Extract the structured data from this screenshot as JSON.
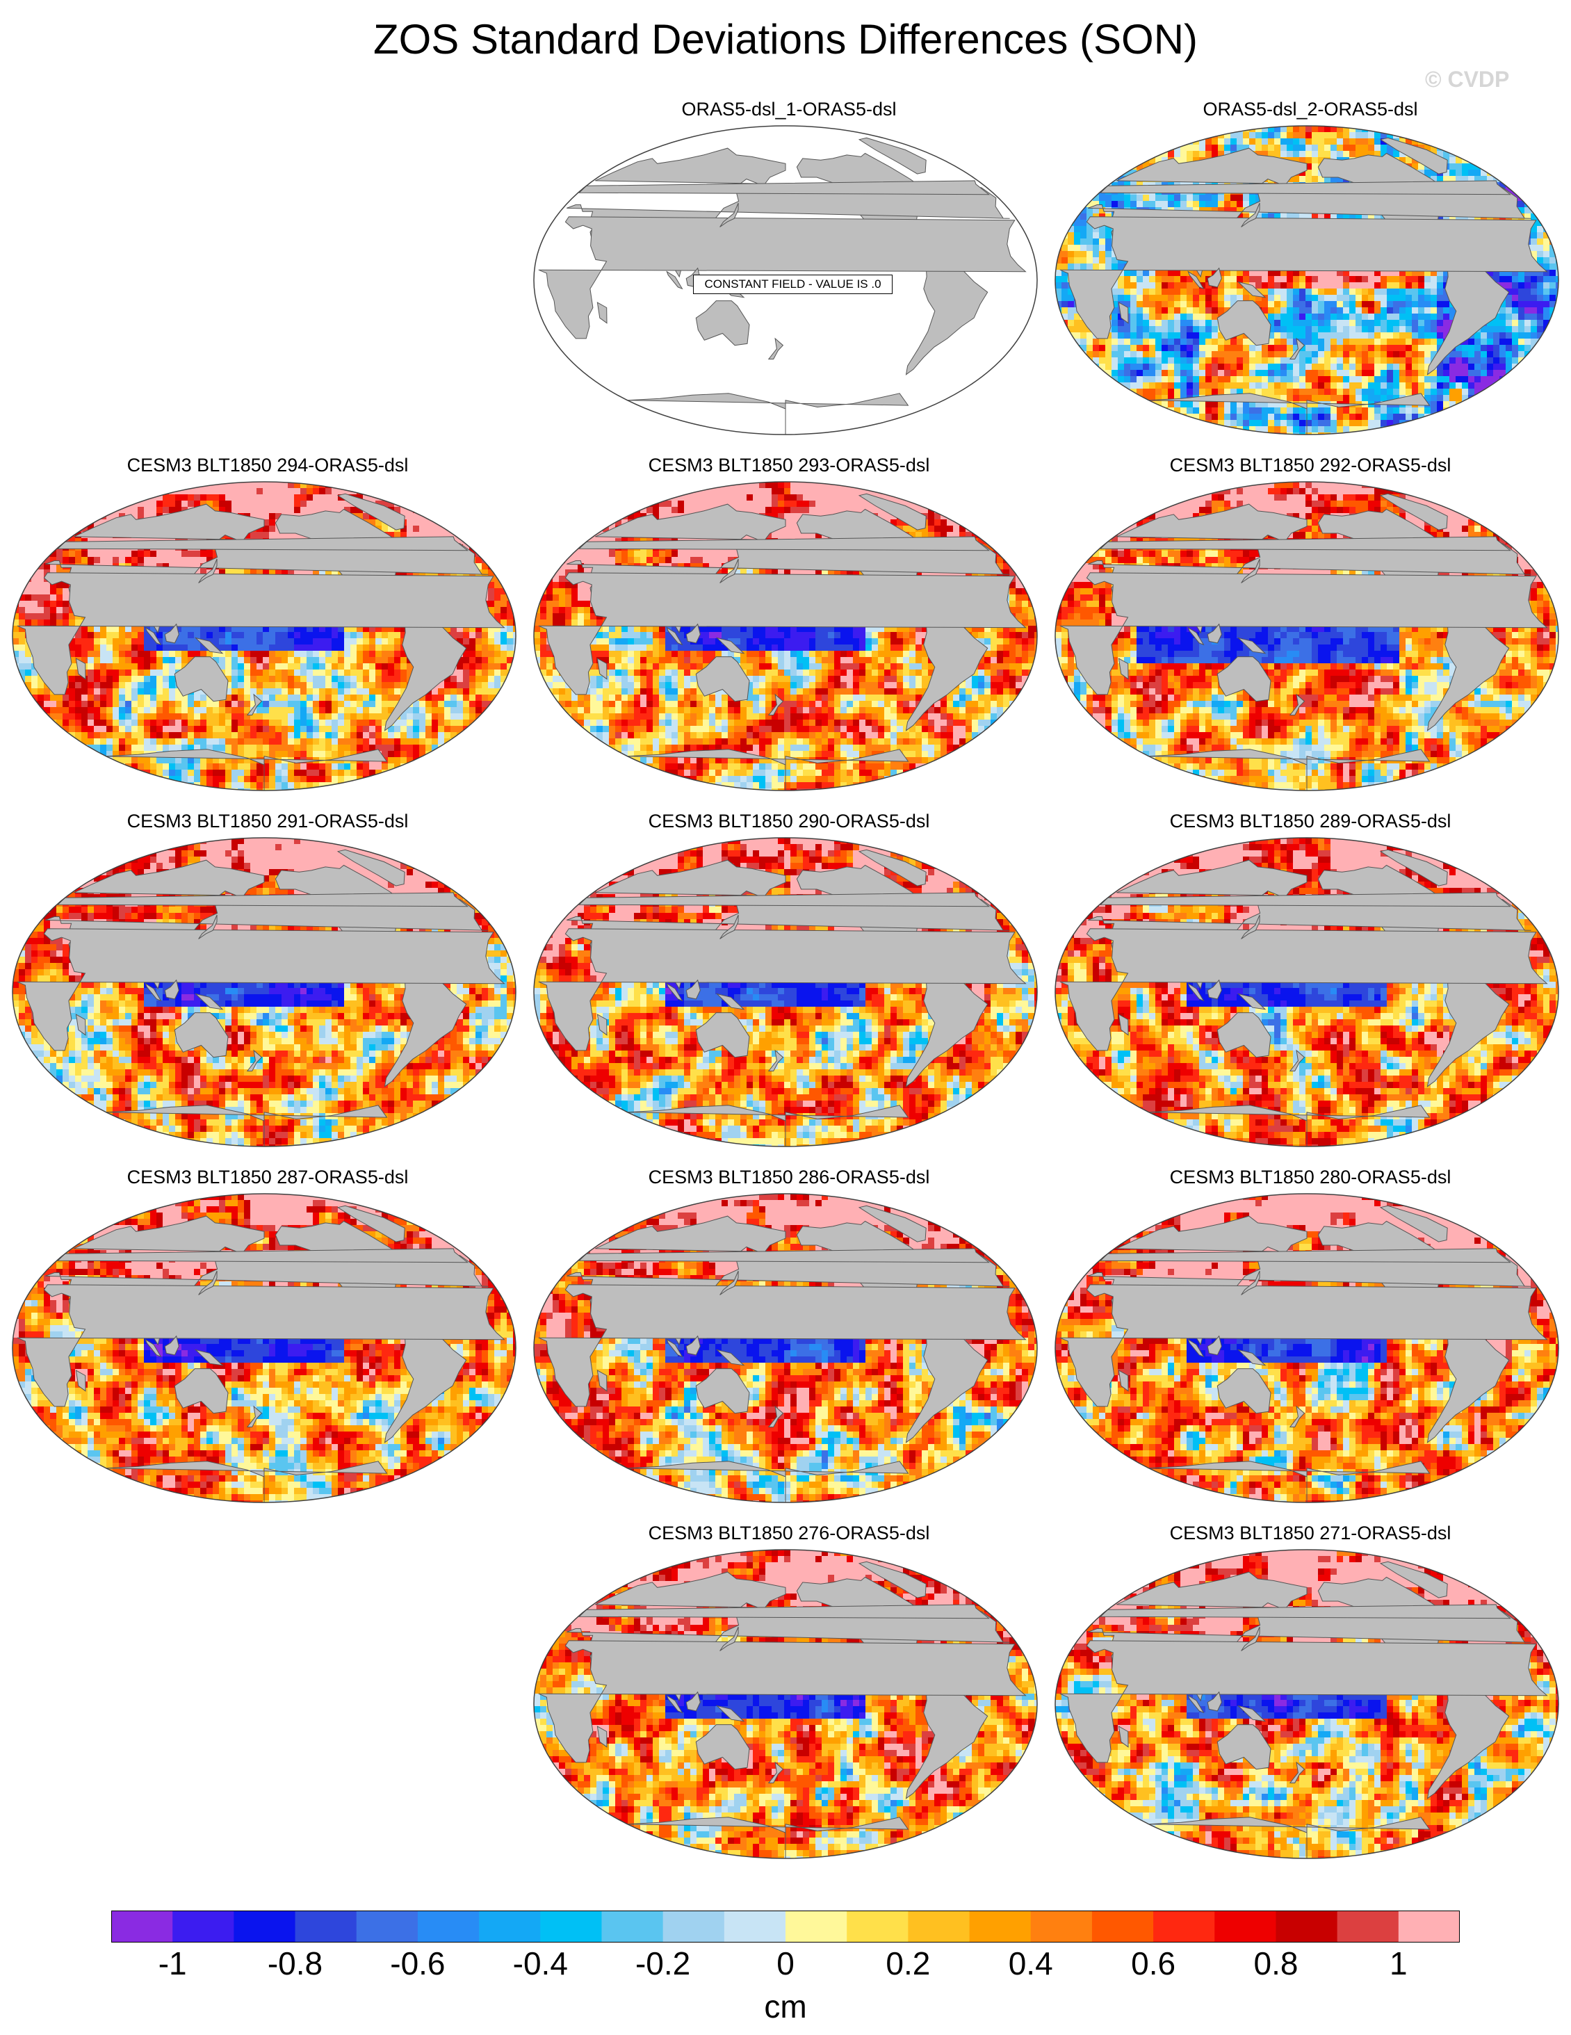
{
  "title": "ZOS Standard Deviations Differences (SON)",
  "watermark": "© CVDP",
  "colors": {
    "land": "#bebebe",
    "ocean_blank": "#ffffff",
    "outline": "#404040"
  },
  "chart_data": {
    "type": "heatmap",
    "projection": "Robinson, Pacific-centered global maps",
    "variable": "ZOS",
    "season": "SON",
    "units": "cm",
    "panels": [
      {
        "title": "ORAS5-dsl_1-ORAS5-dsl",
        "constant_field": true,
        "label": "CONSTANT FIELD - VALUE IS .0"
      },
      {
        "title": "ORAS5-dsl_2-ORAS5-dsl",
        "pattern": "mixed"
      },
      {
        "title": "CESM3 BLT1850 294-ORAS5-dsl",
        "pattern": "positive"
      },
      {
        "title": "CESM3 BLT1850 293-ORAS5-dsl",
        "pattern": "positive"
      },
      {
        "title": "CESM3 BLT1850 292-ORAS5-dsl",
        "pattern": "negative-pacific"
      },
      {
        "title": "CESM3 BLT1850 291-ORAS5-dsl",
        "pattern": "positive"
      },
      {
        "title": "CESM3 BLT1850 290-ORAS5-dsl",
        "pattern": "positive"
      },
      {
        "title": "CESM3 BLT1850 289-ORAS5-dsl",
        "pattern": "positive"
      },
      {
        "title": "CESM3 BLT1850 287-ORAS5-dsl",
        "pattern": "positive"
      },
      {
        "title": "CESM3 BLT1850 286-ORAS5-dsl",
        "pattern": "positive"
      },
      {
        "title": "CESM3 BLT1850 280-ORAS5-dsl",
        "pattern": "positive"
      },
      {
        "title": "CESM3 BLT1850 276-ORAS5-dsl",
        "pattern": "positive"
      },
      {
        "title": "CESM3 BLT1850 271-ORAS5-dsl",
        "pattern": "positive"
      }
    ],
    "colorbar": {
      "unit_label": "cm",
      "tick_labels": [
        "-1",
        "-0.8",
        "-0.6",
        "-0.4",
        "-0.2",
        "0",
        "0.2",
        "0.4",
        "0.6",
        "0.8",
        "1"
      ],
      "tick_values": [
        -1,
        -0.8,
        -0.6,
        -0.4,
        -0.2,
        0,
        0.2,
        0.4,
        0.6,
        0.8,
        1
      ],
      "range": [
        -1.1,
        1.1
      ],
      "colors": [
        "#8a2be2",
        "#3c1cf0",
        "#0a14ee",
        "#2e46dc",
        "#3c70e6",
        "#288cf5",
        "#14a8f5",
        "#00c0f5",
        "#5ac5f0",
        "#a0d2f0",
        "#c8e4f5",
        "#fff89a",
        "#ffe04a",
        "#ffc020",
        "#ffa000",
        "#ff8010",
        "#ff5800",
        "#ff2810",
        "#ee0000",
        "#c80000",
        "#dc4040",
        "#ffb0b4"
      ]
    }
  }
}
